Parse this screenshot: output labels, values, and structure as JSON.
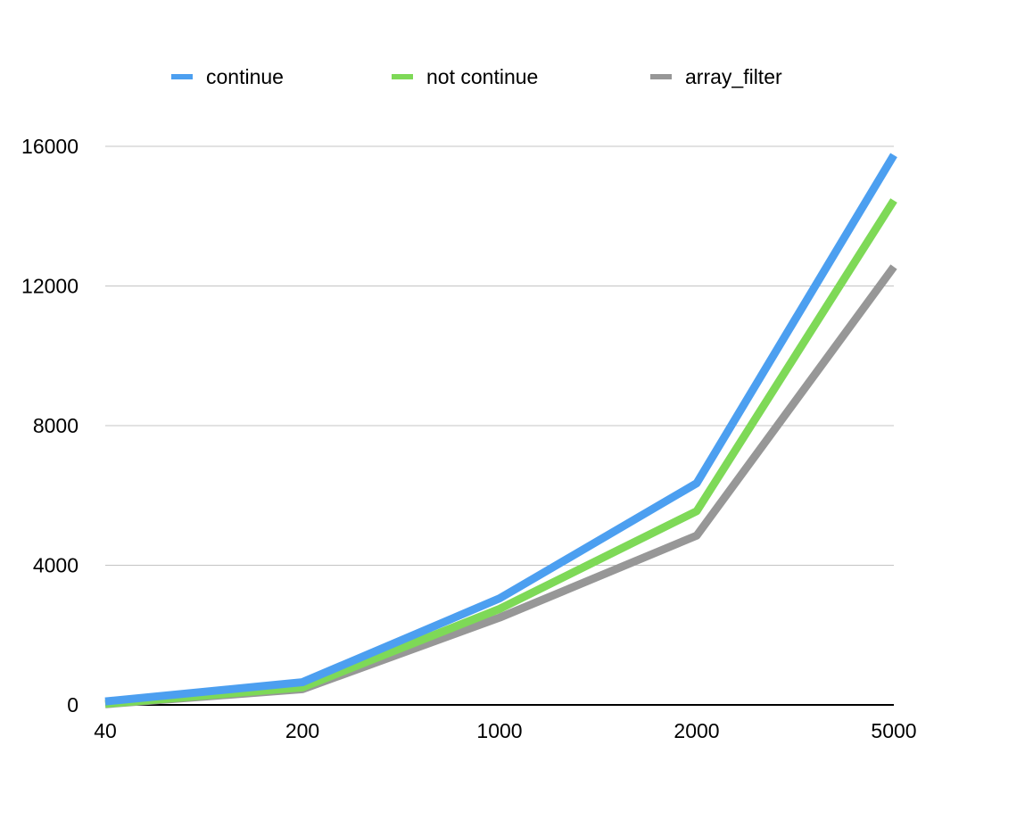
{
  "chart_data": {
    "type": "line",
    "title": "",
    "xlabel": "",
    "ylabel": "",
    "categories": [
      "40",
      "200",
      "1000",
      "2000",
      "5000"
    ],
    "ylim": [
      0,
      16000
    ],
    "yticks": [
      0,
      4000,
      8000,
      12000,
      16000
    ],
    "grid": true,
    "legend_position": "top",
    "series": [
      {
        "name": "continue",
        "color": "#4c9ff0",
        "values": [
          100,
          650,
          3050,
          6350,
          15750
        ]
      },
      {
        "name": "not continue",
        "color": "#7ed957",
        "values": [
          30,
          500,
          2750,
          5550,
          14450
        ]
      },
      {
        "name": "array_filter",
        "color": "#979797",
        "values": [
          20,
          450,
          2500,
          4850,
          12550
        ]
      }
    ]
  }
}
